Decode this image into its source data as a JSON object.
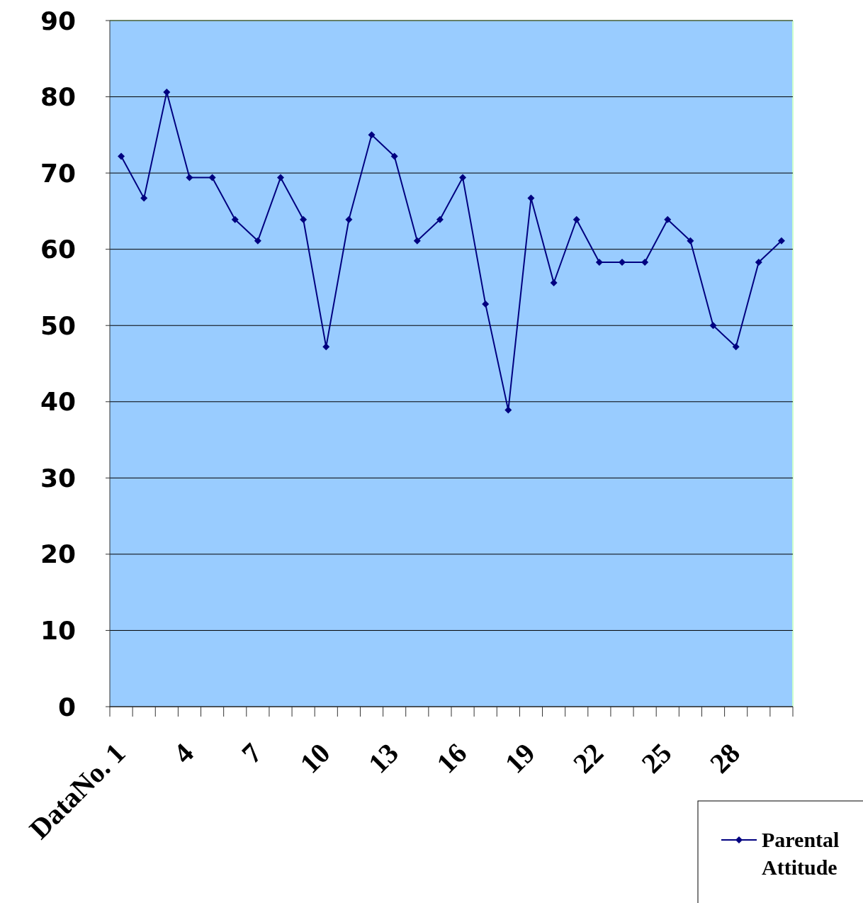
{
  "chart_data": {
    "type": "line",
    "categories": [
      "DataNo. 1",
      null,
      null,
      "4",
      null,
      null,
      "7",
      null,
      null,
      "10",
      null,
      null,
      "13",
      null,
      null,
      "16",
      null,
      null,
      "19",
      null,
      null,
      "22",
      null,
      null,
      "25",
      null,
      null,
      "28",
      null,
      null
    ],
    "series": [
      {
        "name": "Parental Attitude",
        "color": "#000080",
        "values": [
          72.2,
          66.7,
          80.6,
          69.4,
          69.4,
          63.9,
          61.1,
          69.4,
          63.9,
          47.2,
          63.9,
          75,
          72.2,
          61.1,
          63.9,
          69.4,
          52.8,
          38.9,
          66.7,
          55.6,
          63.9,
          58.3,
          58.3,
          58.3,
          63.9,
          61.1,
          50,
          47.2,
          58.3,
          61.1
        ]
      }
    ],
    "ylim": [
      0,
      90
    ],
    "yticks": [
      0,
      10,
      20,
      30,
      40,
      50,
      60,
      70,
      80,
      90
    ],
    "grid": "y",
    "legend": "bottom right",
    "marker": "diamond",
    "line_style": "solid"
  }
}
